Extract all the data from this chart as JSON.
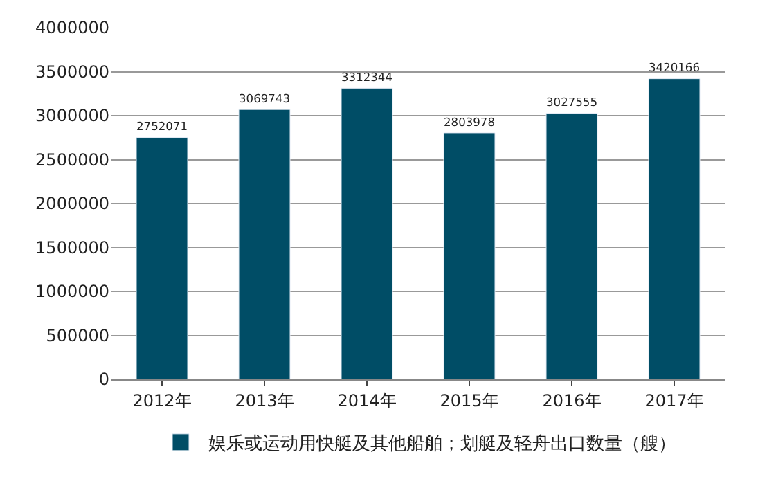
{
  "chart_data": {
    "type": "bar",
    "categories": [
      "2012年",
      "2013年",
      "2014年",
      "2015年",
      "2016年",
      "2017年"
    ],
    "series": [
      {
        "name": "娱乐或运动用快艇及其他船舶；划艇及轻舟出口数量（艘）",
        "color": "#004d66",
        "values": [
          2752071,
          3069743,
          3312344,
          2803978,
          3027555,
          3420166
        ]
      }
    ],
    "ylim": [
      0,
      4000000
    ],
    "yticks": [
      0,
      500000,
      1000000,
      1500000,
      2000000,
      2500000,
      3000000,
      3500000,
      4000000
    ],
    "grid": "y",
    "legend": "bottom",
    "data_labels": true
  }
}
